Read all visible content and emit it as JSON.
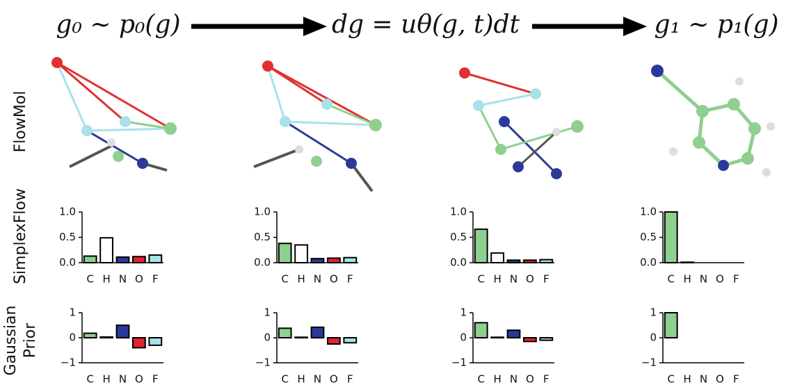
{
  "header": {
    "steps": [
      "g₀ ∼ p₀(g)",
      "dg = uθ(g, t)dt",
      "g₁ ∼ p₁(g)"
    ]
  },
  "row_labels": [
    "FlowMol",
    "SimplexFlow",
    "Gaussian",
    "Prior"
  ],
  "chart_data": [
    {
      "type": "bar",
      "categories": [
        "C",
        "H",
        "N",
        "O",
        "F"
      ],
      "values": [
        0.13,
        0.49,
        0.11,
        0.12,
        0.15
      ],
      "colors": [
        "#8fcf8f",
        "#ffffff",
        "#2b3a99",
        "#e3222b",
        "#a8e2ea"
      ],
      "ylim": [
        0,
        1
      ],
      "yticks": [
        {
          "value": 0,
          "label": "0.0"
        },
        {
          "value": 0.5,
          "label": "0.5"
        },
        {
          "value": 1,
          "label": "1.0"
        }
      ]
    },
    {
      "type": "bar",
      "categories": [
        "C",
        "H",
        "N",
        "O",
        "F"
      ],
      "values": [
        0.38,
        0.35,
        0.08,
        0.09,
        0.1
      ],
      "colors": [
        "#8fcf8f",
        "#ffffff",
        "#2b3a99",
        "#e3222b",
        "#a8e2ea"
      ],
      "ylim": [
        0,
        1
      ],
      "yticks": [
        {
          "value": 0,
          "label": "0.0"
        },
        {
          "value": 0.5,
          "label": "0.5"
        },
        {
          "value": 1,
          "label": "1.0"
        }
      ]
    },
    {
      "type": "bar",
      "categories": [
        "C",
        "H",
        "N",
        "O",
        "F"
      ],
      "values": [
        0.66,
        0.19,
        0.05,
        0.05,
        0.06
      ],
      "colors": [
        "#8fcf8f",
        "#ffffff",
        "#2b3a99",
        "#e3222b",
        "#a8e2ea"
      ],
      "ylim": [
        0,
        1
      ],
      "yticks": [
        {
          "value": 0,
          "label": "0.0"
        },
        {
          "value": 0.5,
          "label": "0.5"
        },
        {
          "value": 1,
          "label": "1.0"
        }
      ]
    },
    {
      "type": "bar",
      "categories": [
        "C",
        "H",
        "N",
        "O",
        "F"
      ],
      "values": [
        1.0,
        0.01,
        0.0,
        0.0,
        0.0
      ],
      "colors": [
        "#8fcf8f",
        "#ffffff",
        "#2b3a99",
        "#e3222b",
        "#a8e2ea"
      ],
      "ylim": [
        0,
        1
      ],
      "yticks": [
        {
          "value": 0,
          "label": "0.0"
        },
        {
          "value": 0.5,
          "label": "0.5"
        },
        {
          "value": 1,
          "label": "1.0"
        }
      ]
    },
    {
      "type": "bar",
      "categories": [
        "C",
        "H",
        "N",
        "O",
        "F"
      ],
      "values": [
        0.18,
        0.03,
        0.5,
        -0.4,
        -0.3
      ],
      "colors": [
        "#8fcf8f",
        "#ffffff",
        "#2b3a99",
        "#e3222b",
        "#a8e2ea"
      ],
      "ylim": [
        -1,
        1
      ],
      "yticks": [
        {
          "value": -1,
          "label": "−1"
        },
        0,
        1
      ]
    },
    {
      "type": "bar",
      "categories": [
        "C",
        "H",
        "N",
        "O",
        "F"
      ],
      "values": [
        0.38,
        0.02,
        0.42,
        -0.25,
        -0.2
      ],
      "colors": [
        "#8fcf8f",
        "#ffffff",
        "#2b3a99",
        "#e3222b",
        "#a8e2ea"
      ],
      "ylim": [
        -1,
        1
      ],
      "yticks": [
        {
          "value": -1,
          "label": "−1"
        },
        0,
        1
      ]
    },
    {
      "type": "bar",
      "categories": [
        "C",
        "H",
        "N",
        "O",
        "F"
      ],
      "values": [
        0.6,
        0.02,
        0.3,
        -0.15,
        -0.1
      ],
      "colors": [
        "#8fcf8f",
        "#ffffff",
        "#2b3a99",
        "#e3222b",
        "#a8e2ea"
      ],
      "ylim": [
        -1,
        1
      ],
      "yticks": [
        {
          "value": -1,
          "label": "−1"
        },
        0,
        1
      ]
    },
    {
      "type": "bar",
      "categories": [
        "C",
        "H",
        "N",
        "O",
        "F"
      ],
      "values": [
        1.0,
        0.0,
        0.0,
        0.0,
        0.0
      ],
      "colors": [
        "#8fcf8f",
        "#ffffff",
        "#2b3a99",
        "#e3222b",
        "#a8e2ea"
      ],
      "ylim": [
        -1,
        1
      ],
      "yticks": [
        {
          "value": -1,
          "label": "−1"
        },
        0,
        1
      ]
    }
  ]
}
